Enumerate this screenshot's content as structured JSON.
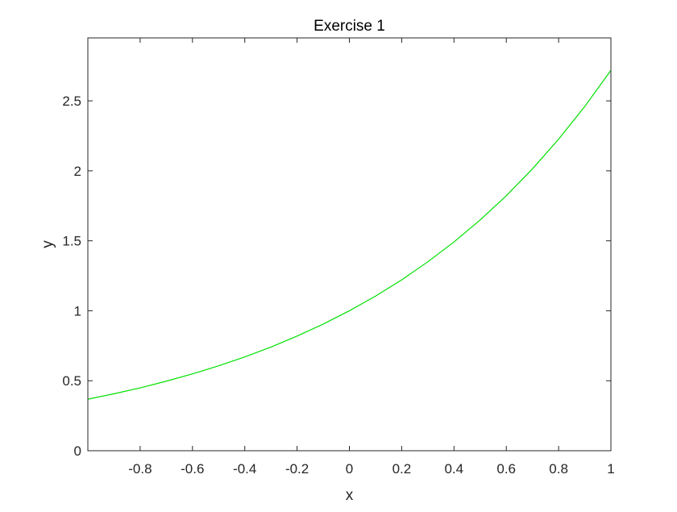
{
  "chart_data": {
    "type": "line",
    "title": "Exercise 1",
    "xlabel": "x",
    "ylabel": "y",
    "xlim": [
      -1,
      1
    ],
    "ylim": [
      0,
      2.95
    ],
    "xticks": [
      -0.8,
      -0.6,
      -0.4,
      -0.2,
      0,
      0.2,
      0.4,
      0.6,
      0.8,
      1
    ],
    "xtick_labels": [
      "-0.8",
      "-0.6",
      "-0.4",
      "-0.2",
      "0",
      "0.2",
      "0.4",
      "0.6",
      "0.8",
      "1"
    ],
    "yticks": [
      0,
      0.5,
      1,
      1.5,
      2,
      2.5
    ],
    "ytick_labels": [
      "0",
      "0.5",
      "1",
      "1.5",
      "2",
      "2.5"
    ],
    "grid": false,
    "box": true,
    "series": [
      {
        "color": "#00e000",
        "x": [
          -1,
          -0.9,
          -0.8,
          -0.7,
          -0.6,
          -0.5,
          -0.4,
          -0.3,
          -0.2,
          -0.1,
          0,
          0.1,
          0.2,
          0.3,
          0.4,
          0.5,
          0.6,
          0.7,
          0.8,
          0.9,
          1
        ],
        "y": [
          0.368,
          0.407,
          0.449,
          0.497,
          0.549,
          0.607,
          0.67,
          0.741,
          0.819,
          0.905,
          1.0,
          1.105,
          1.221,
          1.35,
          1.492,
          1.649,
          1.822,
          2.014,
          2.226,
          2.46,
          2.718
        ]
      }
    ]
  }
}
